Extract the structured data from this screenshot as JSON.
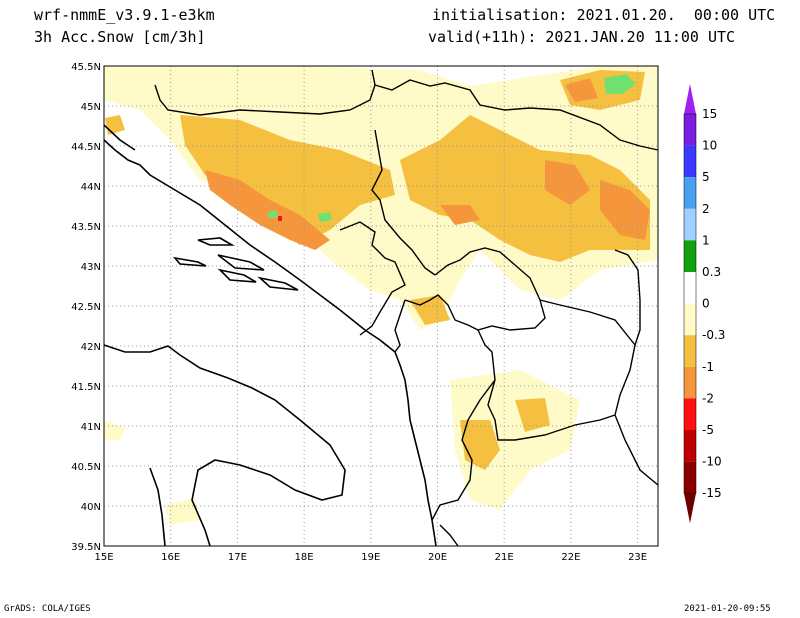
{
  "header": {
    "model": "wrf-nmmE_v3.9.1-e3km",
    "field": "3h Acc.Snow [cm/3h]",
    "init": "initialisation: 2021.01.20.  00:00 UTC",
    "valid": "valid(+11h): 2021.JAN.20 11:00 UTC"
  },
  "footer": {
    "credit": "GrADS: COLA/IGES",
    "timestamp": "2021-01-20-09:55"
  },
  "map": {
    "lat_labels": [
      "45.5N",
      "45N",
      "44.5N",
      "44N",
      "43.5N",
      "43N",
      "42.5N",
      "42N",
      "41.5N",
      "41N",
      "40.5N",
      "40N",
      "39.5N"
    ],
    "lon_labels": [
      "15E",
      "16E",
      "17E",
      "18E",
      "19E",
      "20E",
      "21E",
      "22E",
      "23E"
    ]
  },
  "colorbar": {
    "labels": [
      "15",
      "10",
      "5",
      "2",
      "1",
      "0.3",
      "0",
      "-0.3",
      "-1",
      "-2",
      "-5",
      "-10",
      "-15"
    ],
    "colors": [
      "#7a1fe0",
      "#3a3aff",
      "#4aa0f0",
      "#a0d0ff",
      "#10a010",
      "#70e070",
      "#ffffff",
      "#fffbc8",
      "#f5c040",
      "#f5963c",
      "#ff1010",
      "#c00000",
      "#8a0000"
    ],
    "top_arrow_color": "#a020f0",
    "bottom_arrow_color": "#6e0000"
  },
  "shading_colors": {
    "light": "#fffbc8",
    "mid": "#f5c040",
    "heavy": "#f5963c",
    "extreme": "#e02020",
    "green": "#70e070"
  }
}
